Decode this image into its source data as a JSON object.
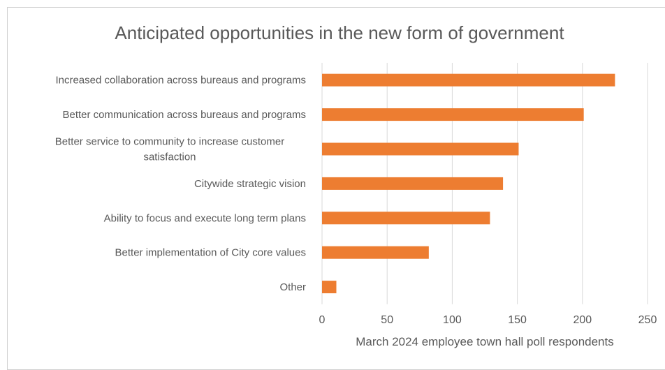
{
  "chart_data": {
    "type": "bar",
    "orientation": "horizontal",
    "title": "Anticipated opportunities in the new form of government",
    "xlabel": "March 2024 employee town hall poll respondents",
    "ylabel": "",
    "categories": [
      [
        "Increased collaboration across bureaus and programs"
      ],
      [
        "Better communication across bureaus and programs"
      ],
      [
        "Better service to community to increase customer",
        "satisfaction"
      ],
      [
        "Citywide strategic vision"
      ],
      [
        "Ability to focus and execute long term plans"
      ],
      [
        "Better implementation of City core values"
      ],
      [
        "Other"
      ]
    ],
    "values": [
      225,
      201,
      151,
      139,
      129,
      82,
      11
    ],
    "xlim": [
      0,
      250
    ],
    "xticks": [
      "0",
      "50",
      "100",
      "150",
      "200",
      "250"
    ],
    "grid": "vertical",
    "color": "#ED7D31",
    "legend": "none"
  }
}
